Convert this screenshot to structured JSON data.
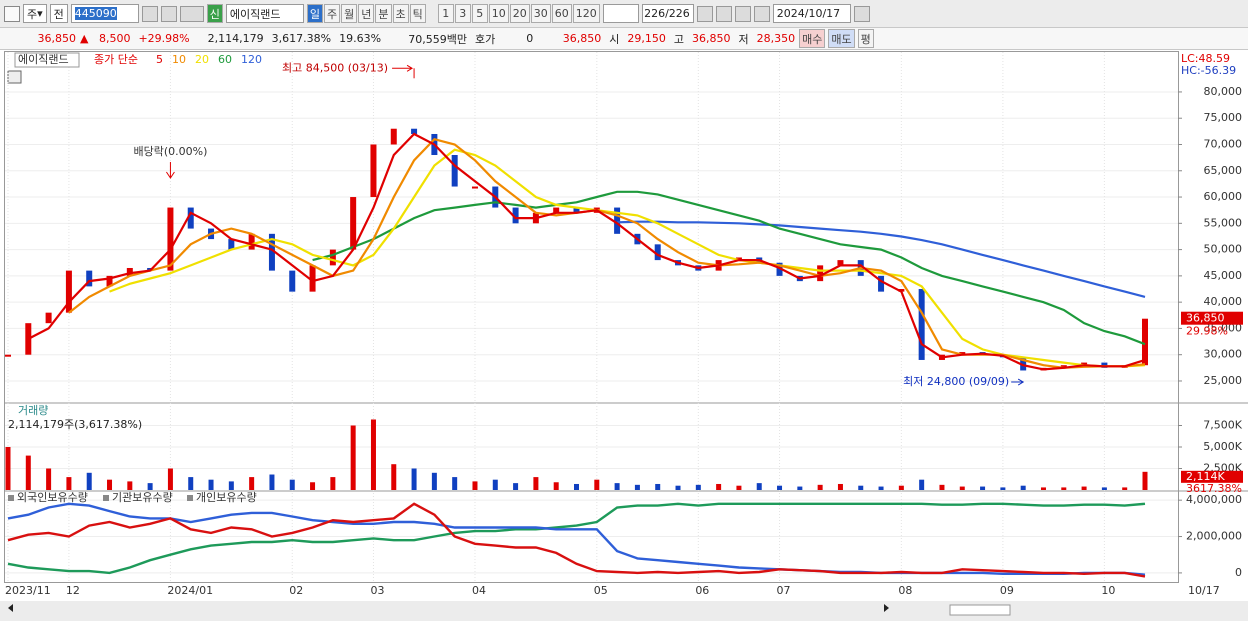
{
  "toolbar": {
    "market": "주",
    "scope": "전",
    "code": "445090",
    "badge": "신",
    "name": "에이직랜드",
    "periods": [
      "일",
      "주",
      "월",
      "년",
      "분",
      "초",
      "틱"
    ],
    "intervals": [
      "1",
      "3",
      "5",
      "10",
      "20",
      "30",
      "60",
      "120"
    ],
    "count": "226/226",
    "date": "2024/10/17"
  },
  "info": {
    "price": "36,850",
    "change": "8,500",
    "change_pct": "+29.98%",
    "volume": "2,114,179",
    "volume_pct": "3,617.38%",
    "turnover": "19.63%",
    "amount": "70,559백만",
    "quote_label": "호가",
    "quote": "0",
    "quote_price": "36,850",
    "open_label": "시",
    "open": "29,150",
    "high_label": "고",
    "high": "36,850",
    "low_label": "저",
    "low": "28,350",
    "buy": "매수",
    "sell": "매도",
    "avg": "평"
  },
  "chart_data": {
    "type": "candlestick",
    "name": "에이직랜드",
    "ma_label": "종가 단순",
    "categories": [
      "2023/11",
      null,
      null,
      "12",
      null,
      null,
      null,
      null,
      "2024/01",
      null,
      null,
      null,
      null,
      null,
      "02",
      null,
      null,
      null,
      "03",
      null,
      null,
      null,
      null,
      "04",
      null,
      null,
      null,
      null,
      null,
      "05",
      null,
      null,
      null,
      null,
      "06",
      null,
      null,
      null,
      "07",
      null,
      null,
      null,
      null,
      null,
      "08",
      null,
      null,
      null,
      null,
      "09",
      null,
      null,
      null,
      null,
      "10",
      null,
      null
    ],
    "last_date": "10/17",
    "close": [
      30000,
      36000,
      38000,
      46000,
      43000,
      45000,
      46500,
      46000,
      58000,
      54000,
      52000,
      50000,
      53000,
      46000,
      42000,
      47000,
      50000,
      60000,
      70000,
      73000,
      72000,
      68000,
      62000,
      62000,
      58000,
      55000,
      57000,
      58000,
      57000,
      58000,
      53000,
      51000,
      48000,
      47000,
      46000,
      48000,
      48500,
      47500,
      45000,
      44000,
      47000,
      48000,
      45000,
      42000,
      42500,
      29000,
      30000,
      30500,
      30000,
      29500,
      27000,
      27500,
      28000,
      28500,
      27500,
      28000,
      36850
    ],
    "series": [
      {
        "name": "5",
        "color": "#e00000",
        "values": [
          null,
          33000,
          35000,
          40000,
          44000,
          44500,
          45500,
          46000,
          50000,
          57000,
          55000,
          52000,
          51000,
          50000,
          47000,
          44000,
          45000,
          50000,
          58000,
          68000,
          72000,
          70000,
          66000,
          63000,
          60000,
          56000,
          56000,
          57000,
          57000,
          57500,
          55000,
          52000,
          49000,
          47500,
          46500,
          47000,
          48000,
          48000,
          46500,
          44500,
          45000,
          47000,
          47000,
          44000,
          42000,
          32000,
          29500,
          30000,
          30200,
          29800,
          28000,
          27200,
          27500,
          28000,
          27800,
          27800,
          29000
        ]
      },
      {
        "name": "10",
        "color": "#f08a00",
        "values": [
          null,
          null,
          null,
          38000,
          41000,
          43000,
          45000,
          46000,
          47000,
          51000,
          53000,
          54000,
          53000,
          51000,
          49000,
          47000,
          45000,
          46000,
          52000,
          60000,
          67000,
          71000,
          70000,
          67000,
          63000,
          60000,
          57000,
          56500,
          57000,
          57500,
          56500,
          55000,
          52000,
          49500,
          47500,
          47000,
          47200,
          47500,
          47000,
          46000,
          45000,
          45500,
          46500,
          46000,
          44000,
          38000,
          31000,
          30000,
          30000,
          30000,
          29000,
          28000,
          27500,
          27700,
          27800,
          27800,
          28200
        ]
      },
      {
        "name": "20",
        "color": "#f0e000",
        "values": [
          null,
          null,
          null,
          null,
          null,
          42000,
          43500,
          44500,
          45500,
          47000,
          48500,
          50000,
          51000,
          52000,
          51000,
          49000,
          48000,
          47000,
          49000,
          54000,
          60000,
          66000,
          69000,
          68000,
          66000,
          63000,
          60000,
          58500,
          58000,
          57500,
          57000,
          56500,
          55000,
          53000,
          51000,
          49000,
          48000,
          47500,
          47000,
          46500,
          46000,
          46000,
          46000,
          45500,
          45000,
          43000,
          38000,
          33000,
          31000,
          30000,
          29500,
          29000,
          28500,
          28000,
          27800,
          27800,
          28000
        ]
      },
      {
        "name": "60",
        "color": "#1e9a3c",
        "values": [
          null,
          null,
          null,
          null,
          null,
          null,
          null,
          null,
          null,
          null,
          null,
          null,
          null,
          null,
          null,
          48000,
          49000,
          50500,
          52000,
          54000,
          56000,
          57500,
          58000,
          58500,
          59000,
          58500,
          58000,
          58500,
          59000,
          60000,
          61000,
          61000,
          60500,
          59500,
          58500,
          57500,
          56500,
          55500,
          54000,
          53000,
          52000,
          51000,
          50500,
          50000,
          48500,
          46500,
          45000,
          44000,
          43000,
          42000,
          41000,
          40000,
          38500,
          36000,
          34500,
          33500,
          32000
        ]
      },
      {
        "name": "120",
        "color": "#2f5fd8",
        "values": [
          null,
          null,
          null,
          null,
          null,
          null,
          null,
          null,
          null,
          null,
          null,
          null,
          null,
          null,
          null,
          null,
          null,
          null,
          null,
          null,
          null,
          null,
          null,
          null,
          null,
          null,
          null,
          null,
          null,
          null,
          55200,
          55300,
          55300,
          55200,
          55200,
          55100,
          55000,
          54800,
          54600,
          54300,
          54000,
          53700,
          53400,
          53000,
          52500,
          51800,
          51000,
          50000,
          49000,
          48000,
          47000,
          46000,
          45000,
          44000,
          43000,
          42000,
          41000
        ]
      }
    ],
    "ylim": [
      21000,
      87600
    ],
    "yticks": [
      {
        "value": 25000,
        "label": "25,000"
      },
      {
        "value": 30000,
        "label": "30,000"
      },
      {
        "value": 35000,
        "label": "35,000"
      },
      {
        "value": 40000,
        "label": "40,000"
      },
      {
        "value": 45000,
        "label": "45,000"
      },
      {
        "value": 50000,
        "label": "50,000"
      },
      {
        "value": 55000,
        "label": "55,000"
      },
      {
        "value": 60000,
        "label": "60,000"
      },
      {
        "value": 65000,
        "label": "65,000"
      },
      {
        "value": 70000,
        "label": "70,000"
      },
      {
        "value": 75000,
        "label": "75,000"
      },
      {
        "value": 80000,
        "label": "80,000"
      }
    ],
    "up_color": "#e00000",
    "down_color": "#1040c0",
    "lc": "LC:48.59",
    "hc": "HC:-56.39",
    "last_label": "36,850",
    "last_change": "29.98%",
    "high": {
      "label": "최고 84,500 (03/13)",
      "value": 84500
    },
    "low": {
      "label": "최저 24,800 (09/09)",
      "value": 24800
    },
    "dividend": {
      "label": "배당락(0.00%)"
    },
    "volume": {
      "title": "거래량",
      "subtitle": "2,114,179주(3,617.38%)",
      "values": [
        5000000,
        4000000,
        2500000,
        1500000,
        2000000,
        1200000,
        1000000,
        800000,
        2500000,
        1500000,
        1200000,
        1000000,
        1500000,
        1800000,
        1200000,
        900000,
        1500000,
        7500000,
        8200000,
        3000000,
        2500000,
        2000000,
        1500000,
        1000000,
        1200000,
        800000,
        1500000,
        900000,
        700000,
        1200000,
        800000,
        600000,
        700000,
        500000,
        600000,
        700000,
        500000,
        800000,
        500000,
        400000,
        600000,
        700000,
        500000,
        400000,
        500000,
        1200000,
        600000,
        400000,
        400000,
        300000,
        500000,
        300000,
        300000,
        400000,
        300000,
        300000,
        2114179
      ],
      "ylim": [
        0,
        10000000
      ],
      "yticks": [
        {
          "value": 2500000,
          "label": "2,500K"
        },
        {
          "value": 5000000,
          "label": "5,000K"
        },
        {
          "value": 7500000,
          "label": "7,500K"
        }
      ],
      "last_label": "2,114K",
      "last_pct": "3617.38%"
    },
    "holdings": {
      "series": [
        {
          "name": "외국인보유수량",
          "color": "#d81010",
          "values": [
            1800000,
            2100000,
            2200000,
            2000000,
            2600000,
            2800000,
            2500000,
            2700000,
            3000000,
            2400000,
            2200000,
            2500000,
            2400000,
            2000000,
            2200000,
            2500000,
            2900000,
            2800000,
            2900000,
            3000000,
            3800000,
            3200000,
            2000000,
            1600000,
            1500000,
            1400000,
            1400000,
            1100000,
            500000,
            100000,
            50000,
            0,
            50000,
            0,
            50000,
            100000,
            0,
            50000,
            200000,
            150000,
            100000,
            0,
            0,
            0,
            50000,
            0,
            0,
            200000,
            150000,
            100000,
            50000,
            0,
            0,
            -50000,
            0,
            0,
            -200000
          ]
        },
        {
          "name": "기관보유수량",
          "color": "#1e9a5a",
          "values": [
            500000,
            300000,
            200000,
            100000,
            100000,
            0,
            300000,
            700000,
            1000000,
            1300000,
            1500000,
            1600000,
            1700000,
            1700000,
            1800000,
            1700000,
            1700000,
            1800000,
            1900000,
            1800000,
            1800000,
            2000000,
            2200000,
            2300000,
            2300000,
            2400000,
            2400000,
            2500000,
            2600000,
            2800000,
            3600000,
            3700000,
            3700000,
            3800000,
            3700000,
            3800000,
            3800000,
            3800000,
            3800000,
            3800000,
            3800000,
            3800000,
            3800000,
            3800000,
            3800000,
            3800000,
            3750000,
            3750000,
            3800000,
            3800000,
            3750000,
            3700000,
            3700000,
            3750000,
            3750000,
            3700000,
            3800000
          ]
        },
        {
          "name": "개인보유수량",
          "color": "#2f5fd8",
          "values": [
            3000000,
            3200000,
            3600000,
            3800000,
            3700000,
            3400000,
            3100000,
            3000000,
            3000000,
            2800000,
            3000000,
            3200000,
            3300000,
            3300000,
            3100000,
            2900000,
            2800000,
            2700000,
            2700000,
            2800000,
            2800000,
            2700000,
            2500000,
            2500000,
            2500000,
            2500000,
            2500000,
            2400000,
            2400000,
            2400000,
            1200000,
            800000,
            700000,
            600000,
            500000,
            400000,
            300000,
            250000,
            200000,
            150000,
            100000,
            50000,
            50000,
            0,
            0,
            0,
            0,
            0,
            0,
            -50000,
            -50000,
            -50000,
            -50000,
            0,
            0,
            0,
            -100000
          ]
        }
      ],
      "ylim": [
        -500000,
        4450000
      ],
      "yticks": [
        0,
        {
          "value": 2000000,
          "label": "2,000,000"
        },
        {
          "value": 4000000,
          "label": "4,000,000"
        }
      ]
    }
  }
}
